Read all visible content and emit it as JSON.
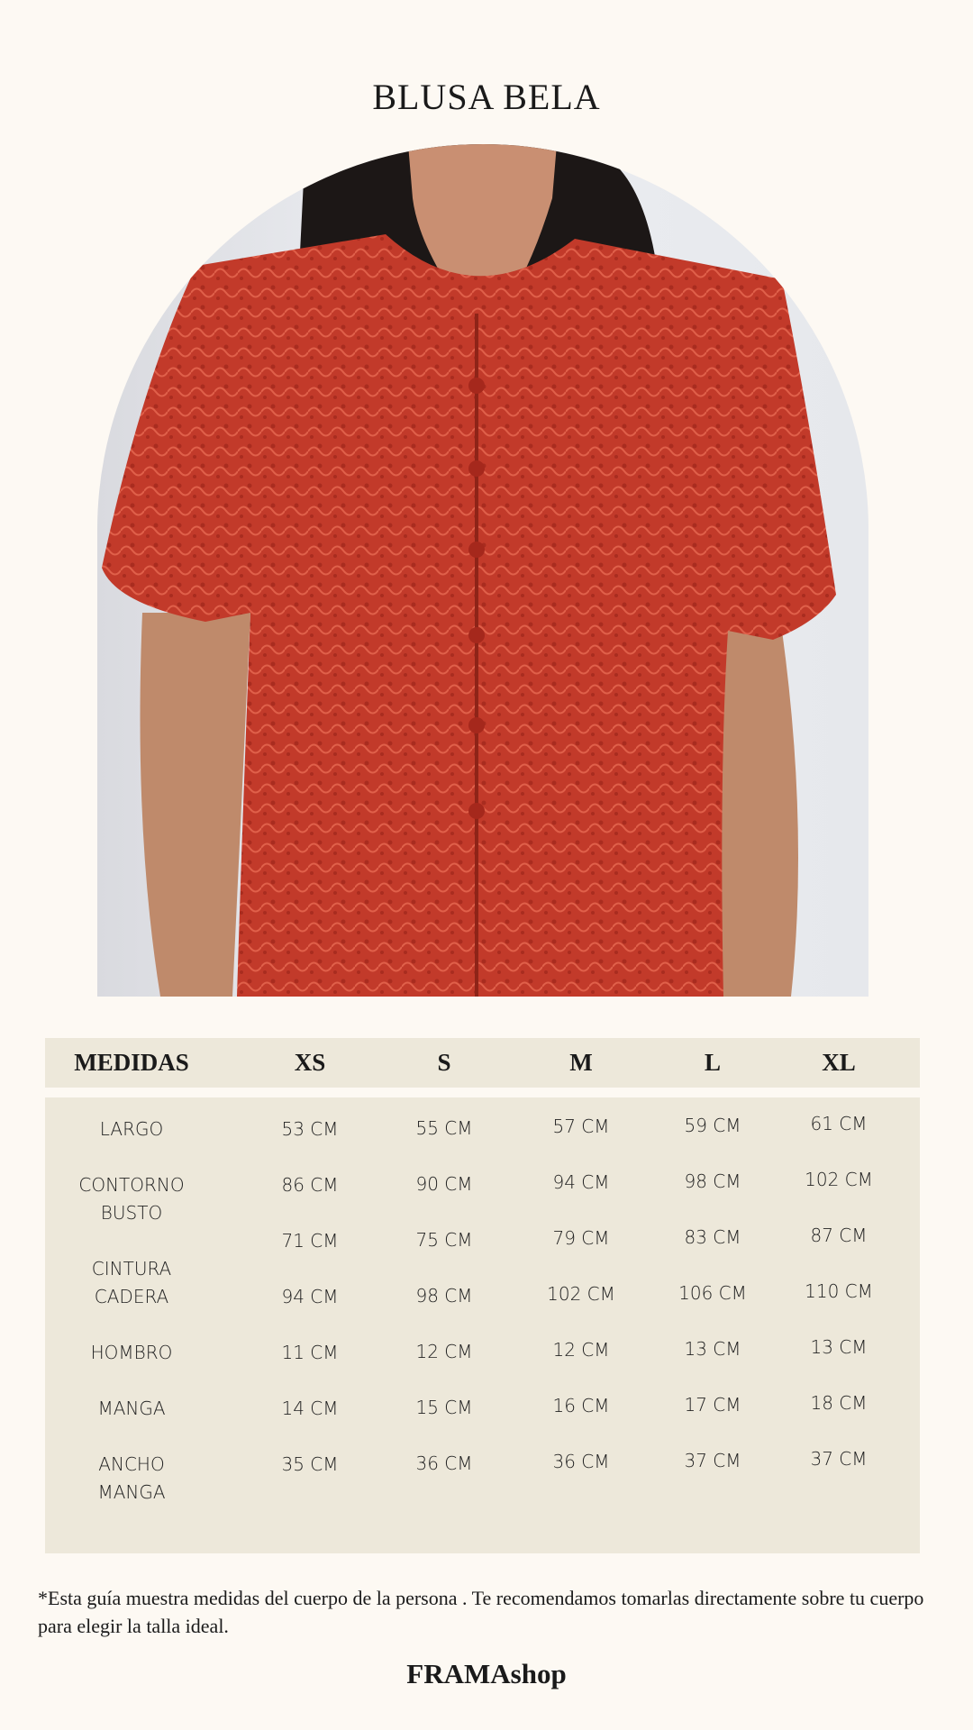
{
  "title": "BLUSA BELA",
  "table": {
    "headers": [
      "MEDIDAS",
      "XS",
      "S",
      "M",
      "L",
      "XL"
    ],
    "rows": [
      {
        "label": [
          "LARGO"
        ],
        "values": [
          "53 CM",
          "55 CM",
          "57 CM",
          "59 CM",
          "61 CM"
        ]
      },
      {
        "label": [
          "CONTORNO",
          "BUSTO"
        ],
        "values": [
          "86 CM",
          "90 CM",
          "94 CM",
          "98 CM",
          "102 CM"
        ]
      },
      {
        "label": [
          "CINTURA"
        ],
        "values": [
          "71 CM",
          "75 CM",
          "79 CM",
          "83 CM",
          "87 CM"
        ]
      },
      {
        "label": [
          "CADERA"
        ],
        "values": [
          "94 CM",
          "98 CM",
          "102 CM",
          "106 CM",
          "110 CM"
        ]
      },
      {
        "label": [
          "HOMBRO"
        ],
        "values": [
          "11 CM",
          "12 CM",
          "12 CM",
          "13 CM",
          "13 CM"
        ]
      },
      {
        "label": [
          "MANGA"
        ],
        "values": [
          "14 CM",
          "15 CM",
          "16 CM",
          "17 CM",
          "18 CM"
        ]
      },
      {
        "label": [
          "ANCHO",
          "MANGA"
        ],
        "values": [
          "35 CM",
          "36 CM",
          "36 CM",
          "37 CM",
          "37 CM"
        ]
      }
    ]
  },
  "footnote": "*Esta guía muestra medidas del cuerpo de la persona . Te recomendamos tomarlas directamente sobre tu cuerpo para elegir la talla ideal.",
  "brand": "FRAMAshop",
  "colors": {
    "background": "#fdf9f3",
    "table_fill": "#ede8da",
    "blouse": "#c0392b"
  }
}
